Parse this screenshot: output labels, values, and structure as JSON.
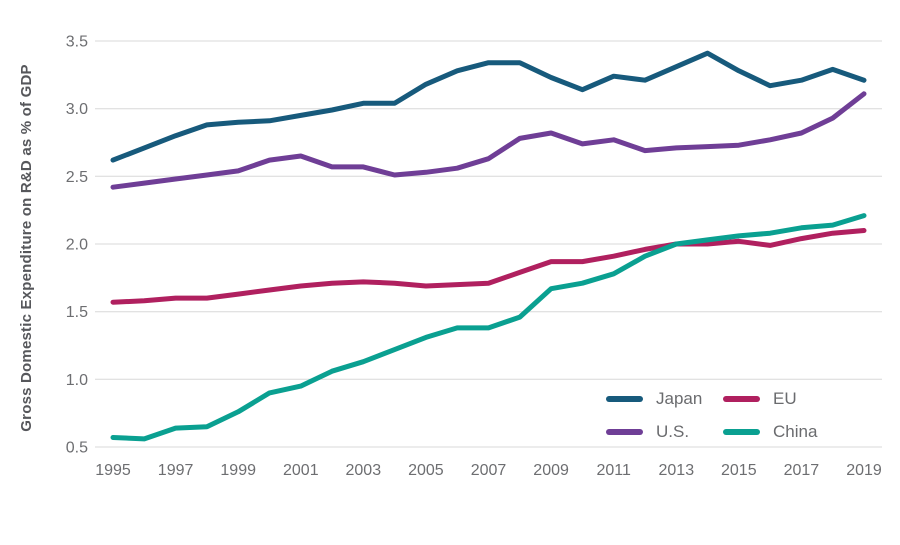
{
  "chart_data": {
    "type": "line",
    "title": "",
    "xlabel": "",
    "ylabel": "Gross Domestic Expenditure  on R&D as % of GDP",
    "ylim": [
      0.5,
      3.5
    ],
    "yticks": [
      0.5,
      1.0,
      1.5,
      2.0,
      2.5,
      3.0,
      3.5
    ],
    "grid": "horizontal-only",
    "legend_position": "inside-bottom-right",
    "x": [
      1995,
      1996,
      1997,
      1998,
      1999,
      2000,
      2001,
      2002,
      2003,
      2004,
      2005,
      2006,
      2007,
      2008,
      2009,
      2010,
      2011,
      2012,
      2013,
      2014,
      2015,
      2016,
      2017,
      2018,
      2019
    ],
    "xtick_labels": [
      "1995",
      "1997",
      "1999",
      "2001",
      "2003",
      "2005",
      "2007",
      "2009",
      "2011",
      "2013",
      "2015",
      "2017",
      "2019"
    ],
    "series": [
      {
        "name": "Japan",
        "color": "#175a7c",
        "values": [
          2.62,
          2.71,
          2.8,
          2.88,
          2.9,
          2.91,
          2.95,
          2.99,
          3.04,
          3.04,
          3.18,
          3.28,
          3.34,
          3.34,
          3.23,
          3.14,
          3.24,
          3.21,
          3.31,
          3.41,
          3.28,
          3.17,
          3.21,
          3.29,
          3.21
        ]
      },
      {
        "name": "U.S.",
        "color": "#6f3e96",
        "values": [
          2.42,
          2.45,
          2.48,
          2.51,
          2.54,
          2.62,
          2.65,
          2.57,
          2.57,
          2.51,
          2.53,
          2.56,
          2.63,
          2.78,
          2.82,
          2.74,
          2.77,
          2.69,
          2.71,
          2.72,
          2.73,
          2.77,
          2.82,
          2.93,
          3.11
        ]
      },
      {
        "name": "EU",
        "color": "#b0205f",
        "values": [
          1.57,
          1.58,
          1.6,
          1.6,
          1.63,
          1.66,
          1.69,
          1.71,
          1.72,
          1.71,
          1.69,
          1.7,
          1.71,
          1.79,
          1.87,
          1.87,
          1.91,
          1.96,
          2.0,
          2.0,
          2.02,
          1.99,
          2.04,
          2.08,
          2.1
        ]
      },
      {
        "name": "China",
        "color": "#0aa091",
        "values": [
          0.57,
          0.56,
          0.64,
          0.65,
          0.76,
          0.9,
          0.95,
          1.06,
          1.13,
          1.22,
          1.31,
          1.38,
          1.38,
          1.46,
          1.67,
          1.71,
          1.78,
          1.91,
          2.0,
          2.03,
          2.06,
          2.08,
          2.12,
          2.14,
          2.21
        ]
      }
    ],
    "style": {
      "gridline_color": "#d8d8d8",
      "tick_label_color": "#6d6e71",
      "axis_title_color": "#56575b",
      "line_width": 5
    }
  }
}
